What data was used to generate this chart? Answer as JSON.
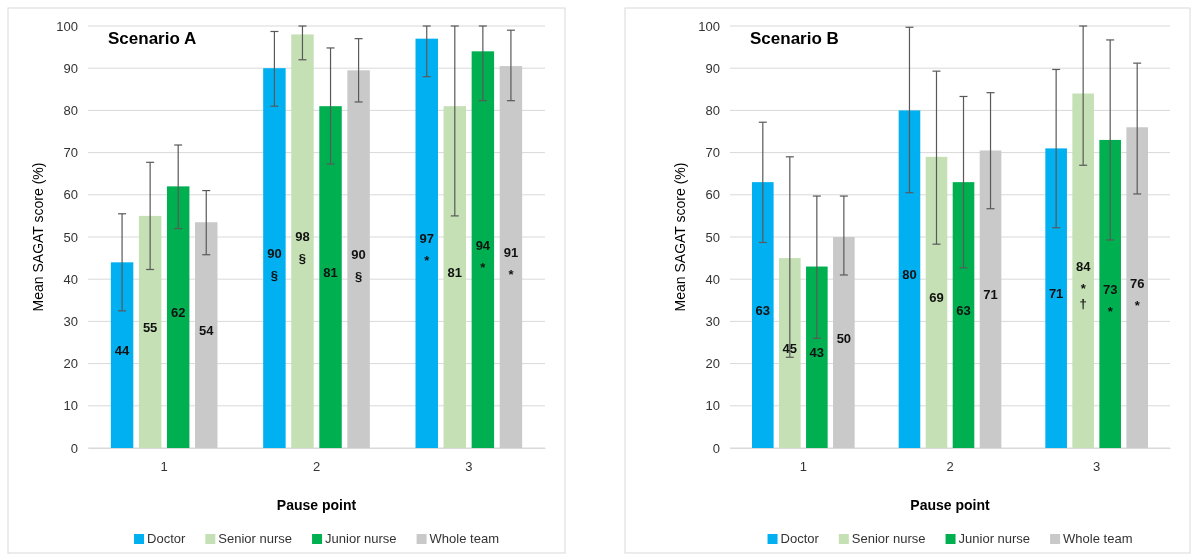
{
  "chart_data": [
    {
      "type": "bar",
      "title": "Scenario A",
      "xlabel": "Pause point",
      "ylabel": "Mean SAGAT score (%)",
      "categories": [
        "1",
        "2",
        "3"
      ],
      "ylim": [
        0,
        100
      ],
      "yticks": [
        0,
        10,
        20,
        30,
        40,
        50,
        60,
        70,
        80,
        90,
        100
      ],
      "grid": "y",
      "legend": "bottom",
      "series": [
        {
          "name": "Doctor",
          "color": "#00b0f0",
          "values": [
            44,
            90,
            97
          ],
          "errors": [
            [
              32.5,
              55.5
            ],
            [
              81,
              98.7
            ],
            [
              88,
              100
            ]
          ],
          "value_labels": [
            "44",
            "90\n§",
            "97\n*"
          ]
        },
        {
          "name": "Senior nurse",
          "color": "#c5e0b4",
          "values": [
            55,
            98,
            81
          ],
          "errors": [
            [
              42.3,
              67.7
            ],
            [
              92,
              100
            ],
            [
              55,
              100
            ]
          ],
          "value_labels": [
            "55",
            "98\n§",
            "81"
          ]
        },
        {
          "name": "Junior nurse",
          "color": "#00b050",
          "values": [
            62,
            81,
            94
          ],
          "errors": [
            [
              52,
              71.8
            ],
            [
              67.3,
              94.8
            ],
            [
              82.3,
              100
            ]
          ],
          "value_labels": [
            "62",
            "81",
            "94\n*"
          ]
        },
        {
          "name": "Whole team",
          "color": "#c9c9c9",
          "values": [
            53.5,
            89.5,
            90.5
          ],
          "errors": [
            [
              45.8,
              61
            ],
            [
              82,
              97
            ],
            [
              82.3,
              99
            ]
          ],
          "value_labels": [
            "54",
            "90\n§",
            "91\n*"
          ]
        }
      ]
    },
    {
      "type": "bar",
      "title": "Scenario B",
      "xlabel": "Pause point",
      "ylabel": "Mean SAGAT score (%)",
      "categories": [
        "1",
        "2",
        "3"
      ],
      "ylim": [
        0,
        100
      ],
      "yticks": [
        0,
        10,
        20,
        30,
        40,
        50,
        60,
        70,
        80,
        90,
        100
      ],
      "grid": "y",
      "legend": "bottom",
      "series": [
        {
          "name": "Doctor",
          "color": "#00b0f0",
          "values": [
            63,
            80,
            71
          ],
          "errors": [
            [
              48.7,
              77.2
            ],
            [
              60.5,
              99.7
            ],
            [
              52.2,
              89.7
            ]
          ],
          "value_labels": [
            "63",
            "80",
            "71"
          ]
        },
        {
          "name": "Senior nurse",
          "color": "#c5e0b4",
          "values": [
            45,
            69,
            84
          ],
          "errors": [
            [
              21.5,
              69
            ],
            [
              48.3,
              89.3
            ],
            [
              67,
              100
            ]
          ],
          "value_labels": [
            "45",
            "69",
            "84\n*\n†"
          ]
        },
        {
          "name": "Junior nurse",
          "color": "#00b050",
          "values": [
            43,
            63,
            73
          ],
          "errors": [
            [
              26,
              59.7
            ],
            [
              42.7,
              83.3
            ],
            [
              49.3,
              96.7
            ]
          ],
          "value_labels": [
            "43",
            "63",
            "73\n*"
          ]
        },
        {
          "name": "Whole team",
          "color": "#c9c9c9",
          "values": [
            50,
            70.5,
            76
          ],
          "errors": [
            [
              41,
              59.7
            ],
            [
              56.7,
              84.2
            ],
            [
              60.2,
              91.2
            ]
          ],
          "value_labels": [
            "50",
            "71",
            "76\n*"
          ]
        }
      ]
    }
  ]
}
